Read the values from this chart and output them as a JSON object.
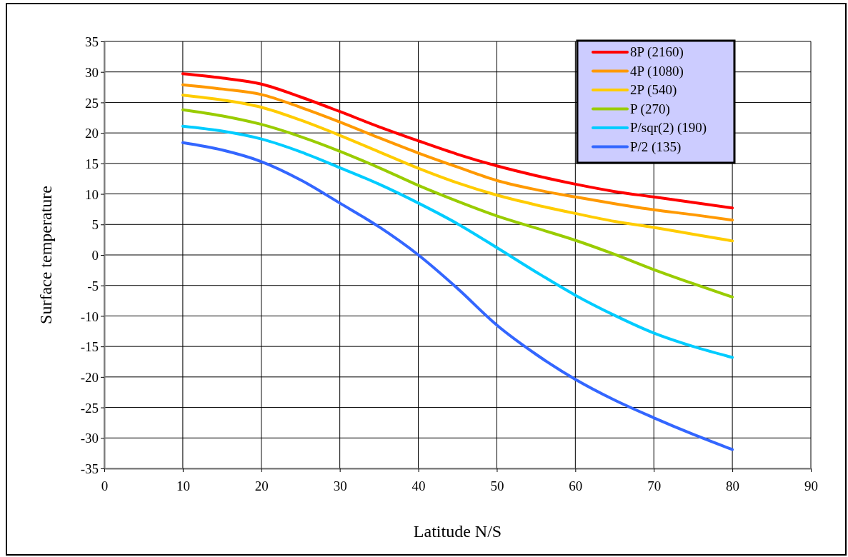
{
  "chart_data": {
    "type": "line",
    "xlabel": "Latitude N/S",
    "ylabel": "Surface temperature",
    "x": [
      10,
      15,
      20,
      25,
      30,
      35,
      40,
      45,
      50,
      55,
      60,
      65,
      70,
      75,
      80
    ],
    "xlim": [
      0,
      90
    ],
    "xticks": [
      0,
      10,
      20,
      30,
      40,
      50,
      60,
      70,
      80,
      90
    ],
    "ylim": [
      -35,
      35
    ],
    "yticks": [
      -35,
      -30,
      -25,
      -20,
      -15,
      -10,
      -5,
      0,
      5,
      10,
      15,
      20,
      25,
      30,
      35
    ],
    "grid": true,
    "legend": "top right",
    "marker": "none",
    "line_style": "solid",
    "series": [
      {
        "name": "8P (2160)",
        "color": "#ff0000",
        "values": [
          29.7,
          29.0,
          28.0,
          25.9,
          23.5,
          21.0,
          18.7,
          16.5,
          14.6,
          13.0,
          11.6,
          10.4,
          9.5,
          8.6,
          7.7
        ]
      },
      {
        "name": "4P (1080)",
        "color": "#ff9900",
        "values": [
          27.9,
          27.2,
          26.3,
          24.2,
          21.8,
          19.2,
          16.7,
          14.4,
          12.2,
          10.7,
          9.5,
          8.4,
          7.4,
          6.6,
          5.7
        ]
      },
      {
        "name": "2P (540)",
        "color": "#ffcc00",
        "values": [
          26.2,
          25.4,
          24.2,
          22.1,
          19.6,
          16.9,
          14.2,
          11.8,
          9.8,
          8.2,
          6.8,
          5.5,
          4.5,
          3.4,
          2.3
        ]
      },
      {
        "name": "P (270)",
        "color": "#99cc00",
        "values": [
          23.8,
          22.8,
          21.4,
          19.4,
          17.0,
          14.3,
          11.4,
          8.8,
          6.4,
          4.4,
          2.4,
          0.1,
          -2.4,
          -4.7,
          -6.9
        ]
      },
      {
        "name": "P/sqr(2) (190)",
        "color": "#00ccff",
        "values": [
          21.1,
          20.3,
          19.0,
          16.9,
          14.3,
          11.6,
          8.5,
          5.1,
          1.2,
          -2.8,
          -6.6,
          -9.9,
          -12.8,
          -15.0,
          -16.8
        ]
      },
      {
        "name": "P/2 (135)",
        "color": "#3366ff",
        "values": [
          18.4,
          17.2,
          15.3,
          12.3,
          8.5,
          4.6,
          0.0,
          -5.5,
          -11.5,
          -16.3,
          -20.4,
          -23.8,
          -26.7,
          -29.4,
          -31.9
        ]
      }
    ]
  }
}
